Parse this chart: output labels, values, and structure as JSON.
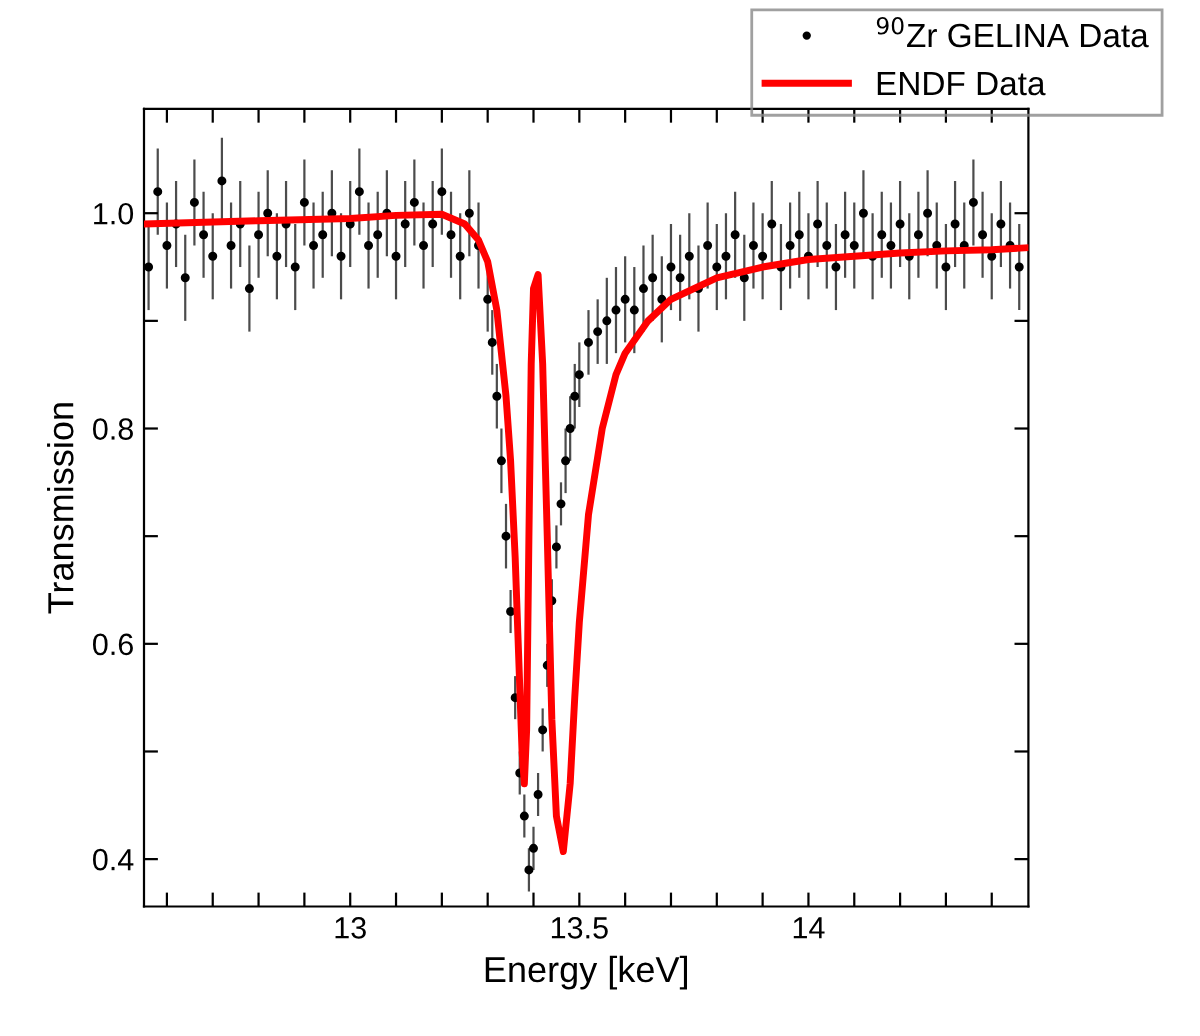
{
  "chart_data": {
    "type": "scatter",
    "xlabel": "Energy [keV]",
    "ylabel": "Transmission",
    "xlim": [
      12.55,
      14.48
    ],
    "ylim": [
      0.356,
      1.097
    ],
    "xticks": [
      {
        "value": 12.6,
        "label": null
      },
      {
        "value": 12.7,
        "label": null
      },
      {
        "value": 12.8,
        "label": null
      },
      {
        "value": 12.9,
        "label": null
      },
      13,
      {
        "value": 13.1,
        "label": null
      },
      {
        "value": 13.2,
        "label": null
      },
      {
        "value": 13.3,
        "label": null
      },
      {
        "value": 13.4,
        "label": null
      },
      13.5,
      {
        "value": 13.6,
        "label": null
      },
      {
        "value": 13.7,
        "label": null
      },
      {
        "value": 13.8,
        "label": null
      },
      {
        "value": 13.9,
        "label": null
      },
      14,
      {
        "value": 14.1,
        "label": null
      },
      {
        "value": 14.2,
        "label": null
      },
      {
        "value": 14.3,
        "label": null
      },
      {
        "value": 14.4,
        "label": null
      }
    ],
    "yticks": [
      0.4,
      {
        "value": 0.5,
        "label": null
      },
      0.6,
      {
        "value": 0.7,
        "label": null
      },
      0.8,
      {
        "value": 0.9,
        "label": null
      },
      {
        "value": 1.0,
        "label": "1.0"
      }
    ],
    "legend": "top right",
    "grid": false,
    "series": [
      {
        "name": "$^{90}$Zr GELINA Data",
        "color": "#000000",
        "marker": "circle",
        "x": [
          12.56,
          12.58,
          12.6,
          12.62,
          12.64,
          12.66,
          12.68,
          12.7,
          12.72,
          12.74,
          12.76,
          12.78,
          12.8,
          12.82,
          12.84,
          12.86,
          12.88,
          12.9,
          12.92,
          12.94,
          12.96,
          12.98,
          13.0,
          13.02,
          13.04,
          13.06,
          13.08,
          13.1,
          13.12,
          13.14,
          13.16,
          13.18,
          13.2,
          13.22,
          13.24,
          13.26,
          13.28,
          13.3,
          13.31,
          13.32,
          13.33,
          13.34,
          13.35,
          13.36,
          13.37,
          13.38,
          13.39,
          13.4,
          13.41,
          13.42,
          13.43,
          13.44,
          13.45,
          13.46,
          13.47,
          13.48,
          13.49,
          13.5,
          13.52,
          13.54,
          13.56,
          13.58,
          13.6,
          13.62,
          13.64,
          13.66,
          13.68,
          13.7,
          13.72,
          13.74,
          13.76,
          13.78,
          13.8,
          13.82,
          13.84,
          13.86,
          13.88,
          13.9,
          13.92,
          13.94,
          13.96,
          13.98,
          14.0,
          14.02,
          14.04,
          14.06,
          14.08,
          14.1,
          14.12,
          14.14,
          14.16,
          14.18,
          14.2,
          14.22,
          14.24,
          14.26,
          14.28,
          14.3,
          14.32,
          14.34,
          14.36,
          14.38,
          14.4,
          14.42,
          14.44,
          14.46
        ],
        "values": [
          0.95,
          1.02,
          0.97,
          0.99,
          0.94,
          1.01,
          0.98,
          0.96,
          1.03,
          0.97,
          0.99,
          0.93,
          0.98,
          1.0,
          0.96,
          0.99,
          0.95,
          1.01,
          0.97,
          0.98,
          1.0,
          0.96,
          0.99,
          1.02,
          0.97,
          0.98,
          1.0,
          0.96,
          0.99,
          1.01,
          0.97,
          0.99,
          1.02,
          0.98,
          0.96,
          1.0,
          0.97,
          0.92,
          0.88,
          0.83,
          0.77,
          0.7,
          0.63,
          0.55,
          0.48,
          0.44,
          0.39,
          0.41,
          0.46,
          0.52,
          0.58,
          0.64,
          0.69,
          0.73,
          0.77,
          0.8,
          0.83,
          0.85,
          0.88,
          0.89,
          0.9,
          0.91,
          0.92,
          0.91,
          0.93,
          0.94,
          0.92,
          0.95,
          0.94,
          0.96,
          0.93,
          0.97,
          0.95,
          0.96,
          0.98,
          0.94,
          0.97,
          0.96,
          0.99,
          0.95,
          0.97,
          0.98,
          0.96,
          0.99,
          0.97,
          0.95,
          0.98,
          0.97,
          1.0,
          0.96,
          0.98,
          0.97,
          0.99,
          0.96,
          0.98,
          1.0,
          0.97,
          0.95,
          0.99,
          0.97,
          1.01,
          0.98,
          0.96,
          0.99,
          0.97,
          0.95
        ],
        "errors": [
          0.04,
          0.04,
          0.04,
          0.04,
          0.04,
          0.04,
          0.04,
          0.04,
          0.04,
          0.04,
          0.04,
          0.04,
          0.04,
          0.04,
          0.04,
          0.04,
          0.04,
          0.04,
          0.04,
          0.04,
          0.04,
          0.04,
          0.04,
          0.04,
          0.04,
          0.04,
          0.04,
          0.04,
          0.04,
          0.04,
          0.04,
          0.04,
          0.04,
          0.04,
          0.04,
          0.04,
          0.04,
          0.03,
          0.03,
          0.03,
          0.03,
          0.03,
          0.02,
          0.02,
          0.02,
          0.02,
          0.02,
          0.02,
          0.02,
          0.02,
          0.02,
          0.02,
          0.02,
          0.02,
          0.03,
          0.03,
          0.03,
          0.03,
          0.03,
          0.03,
          0.04,
          0.04,
          0.04,
          0.04,
          0.04,
          0.04,
          0.04,
          0.04,
          0.04,
          0.04,
          0.04,
          0.04,
          0.04,
          0.04,
          0.04,
          0.04,
          0.04,
          0.04,
          0.04,
          0.04,
          0.04,
          0.04,
          0.04,
          0.04,
          0.04,
          0.04,
          0.04,
          0.04,
          0.04,
          0.04,
          0.04,
          0.04,
          0.04,
          0.04,
          0.04,
          0.04,
          0.04,
          0.04,
          0.04,
          0.04,
          0.04,
          0.04,
          0.04,
          0.04,
          0.04,
          0.04
        ]
      },
      {
        "name": "ENDF Data",
        "type": "line",
        "color": "#ff0000",
        "marker": "none",
        "line_style": "solid",
        "x": [
          12.55,
          12.8,
          13.0,
          13.1,
          13.2,
          13.25,
          13.28,
          13.3,
          13.32,
          13.34,
          13.35,
          13.36,
          13.37,
          13.375,
          13.38,
          13.385,
          13.39,
          13.395,
          13.4,
          13.41,
          13.42,
          13.43,
          13.44,
          13.45,
          13.465,
          13.48,
          13.49,
          13.5,
          13.52,
          13.55,
          13.58,
          13.6,
          13.65,
          13.7,
          13.8,
          13.9,
          14.0,
          14.1,
          14.2,
          14.3,
          14.4,
          14.48
        ],
        "values": [
          0.99,
          0.993,
          0.995,
          0.998,
          0.999,
          0.99,
          0.975,
          0.955,
          0.91,
          0.83,
          0.77,
          0.68,
          0.56,
          0.5,
          0.47,
          0.52,
          0.7,
          0.86,
          0.93,
          0.943,
          0.86,
          0.7,
          0.53,
          0.44,
          0.407,
          0.47,
          0.55,
          0.62,
          0.72,
          0.8,
          0.85,
          0.87,
          0.9,
          0.92,
          0.94,
          0.95,
          0.957,
          0.96,
          0.963,
          0.965,
          0.966,
          0.968
        ]
      }
    ]
  }
}
